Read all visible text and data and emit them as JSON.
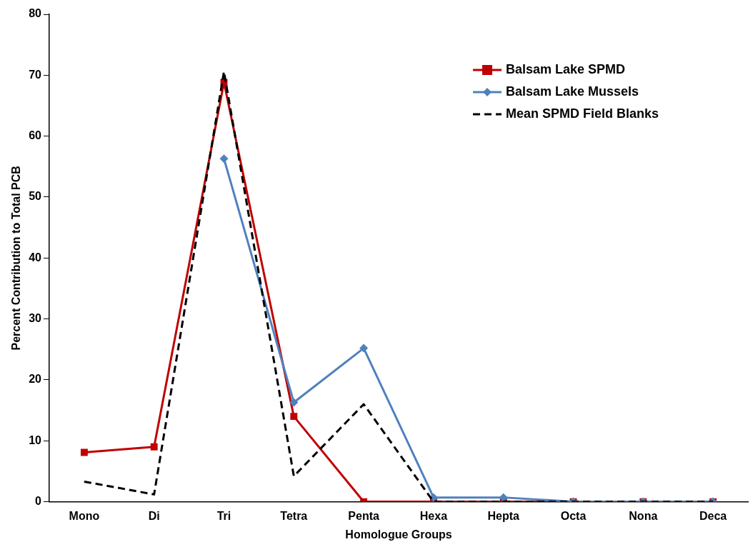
{
  "chart_data": {
    "type": "line",
    "xlabel": "Homologue Groups",
    "ylabel": "Percent Contribution to Total PCB",
    "categories": [
      "Mono",
      "Di",
      "Tri",
      "Tetra",
      "Penta",
      "Hexa",
      "Hepta",
      "Octa",
      "Nona",
      "Deca"
    ],
    "ylim": [
      0,
      80
    ],
    "yticks": [
      0,
      10,
      20,
      30,
      40,
      50,
      60,
      70,
      80
    ],
    "grid": false,
    "legend": "top right",
    "series": [
      {
        "name": "Balsam Lake SPMD",
        "color": "#c00000",
        "marker": "square",
        "line_style": "solid",
        "values": [
          8.1,
          9.0,
          68.8,
          14.0,
          0,
          0,
          0,
          0,
          0,
          0
        ]
      },
      {
        "name": "Balsam Lake Mussels",
        "color": "#4f81bd",
        "marker": "diamond",
        "line_style": "solid",
        "values": [
          null,
          null,
          56.3,
          16.3,
          25.2,
          0.7,
          0.7,
          0,
          0,
          0
        ]
      },
      {
        "name": "Mean SPMD Field Blanks",
        "color": "#000000",
        "marker": "none",
        "line_style": "dashed",
        "values": [
          3.3,
          1.2,
          70.6,
          4.2,
          16.0,
          0,
          0,
          0,
          0,
          0
        ]
      }
    ]
  }
}
